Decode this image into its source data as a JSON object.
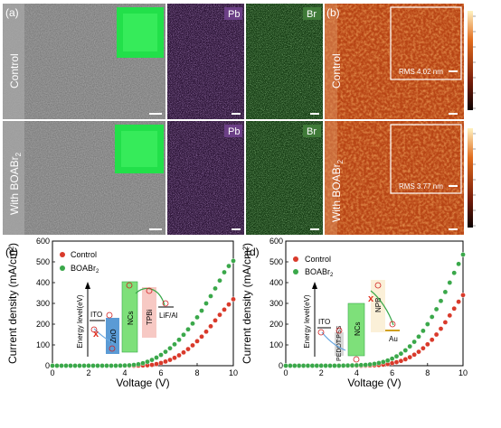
{
  "figure": {
    "panel_a_label": "(a)",
    "panel_b_label": "(b)",
    "panel_c_label": "(c)",
    "panel_d_label": "(d)",
    "row_labels": [
      "Control",
      "With BOABr"
    ],
    "row_label_sub": "2",
    "map_labels": [
      "Pb",
      "Br"
    ],
    "rms_labels": [
      "RMS 4.02 nm",
      "RMS 3.77 nm"
    ],
    "colors": {
      "control": "#d93a2b",
      "boabr": "#3aa84a",
      "pl_green": "#22e04a",
      "pb_map": "#5a2d73",
      "br_map": "#2f7a2c",
      "afm": "#b84515"
    }
  },
  "chart_data": [
    {
      "type": "scatter",
      "panel": "(c)",
      "xlabel": "Voltage (V)",
      "ylabel": "Current density (mA/cm²)",
      "xlim": [
        0,
        10
      ],
      "ylim": [
        0,
        600
      ],
      "xticks": [
        "0",
        "2",
        "4",
        "6",
        "8",
        "10"
      ],
      "yticks": [
        "0",
        "100",
        "200",
        "300",
        "400",
        "500",
        "600"
      ],
      "legend": [
        "Control",
        "BOABr"
      ],
      "legend_sub": "2",
      "legend_position": "top-left",
      "series": [
        {
          "name": "Control",
          "color": "#d93a2b",
          "x": [
            0,
            0.25,
            0.5,
            0.75,
            1,
            1.25,
            1.5,
            1.75,
            2,
            2.25,
            2.5,
            2.75,
            3,
            3.25,
            3.5,
            3.75,
            4,
            4.25,
            4.5,
            4.75,
            5,
            5.25,
            5.5,
            5.75,
            6,
            6.25,
            6.5,
            6.75,
            7,
            7.25,
            7.5,
            7.75,
            8,
            8.25,
            8.5,
            8.75,
            9,
            9.25,
            9.5,
            9.75,
            10
          ],
          "y": [
            0,
            0,
            0,
            0,
            0,
            0,
            0,
            0,
            0,
            0,
            0,
            0,
            0,
            0,
            0,
            0,
            0,
            0,
            0,
            0.5,
            1,
            2,
            4,
            8,
            13,
            20,
            28,
            38,
            50,
            64,
            80,
            98,
            118,
            140,
            164,
            190,
            218,
            245,
            270,
            295,
            320
          ]
        },
        {
          "name": "BOABr",
          "color": "#3aa84a",
          "x": [
            0,
            0.25,
            0.5,
            0.75,
            1,
            1.25,
            1.5,
            1.75,
            2,
            2.25,
            2.5,
            2.75,
            3,
            3.25,
            3.5,
            3.75,
            4,
            4.25,
            4.5,
            4.75,
            5,
            5.25,
            5.5,
            5.75,
            6,
            6.25,
            6.5,
            6.75,
            7,
            7.25,
            7.5,
            7.75,
            8,
            8.25,
            8.5,
            8.75,
            9,
            9.25,
            9.5,
            9.75,
            10
          ],
          "y": [
            0,
            0,
            0,
            0,
            0,
            0,
            0,
            0,
            0,
            0,
            0,
            0,
            0,
            0,
            0,
            0.5,
            1,
            2,
            4,
            7,
            12,
            19,
            28,
            39,
            52,
            67,
            84,
            103,
            125,
            149,
            175,
            203,
            233,
            265,
            300,
            335,
            372,
            410,
            450,
            480,
            505
          ]
        }
      ],
      "inset": {
        "axis_label": "Energy level(eV)",
        "layers": [
          "ITO",
          "ZnO",
          "NCs",
          "TPBi",
          "LiF/Al"
        ]
      }
    },
    {
      "type": "scatter",
      "panel": "(d)",
      "xlabel": "Voltage (V)",
      "ylabel": "Current density (mA/cm²)",
      "xlim": [
        0,
        10
      ],
      "ylim": [
        0,
        600
      ],
      "xticks": [
        "0",
        "2",
        "4",
        "6",
        "8",
        "10"
      ],
      "yticks": [
        "0",
        "100",
        "200",
        "300",
        "400",
        "500",
        "600"
      ],
      "legend": [
        "Control",
        "BOABr"
      ],
      "legend_sub": "2",
      "legend_position": "top-left",
      "series": [
        {
          "name": "Control",
          "color": "#d93a2b",
          "x": [
            0,
            0.25,
            0.5,
            0.75,
            1,
            1.25,
            1.5,
            1.75,
            2,
            2.25,
            2.5,
            2.75,
            3,
            3.25,
            3.5,
            3.75,
            4,
            4.25,
            4.5,
            4.75,
            5,
            5.25,
            5.5,
            5.75,
            6,
            6.25,
            6.5,
            6.75,
            7,
            7.25,
            7.5,
            7.75,
            8,
            8.25,
            8.5,
            8.75,
            9,
            9.25,
            9.5,
            9.75,
            10
          ],
          "y": [
            0,
            0,
            0,
            0,
            0,
            0,
            0,
            0,
            0,
            0,
            0,
            0,
            0,
            0,
            0,
            0,
            0,
            0,
            0.5,
            1,
            2,
            3,
            5,
            8,
            12,
            17,
            23,
            31,
            41,
            53,
            67,
            84,
            103,
            125,
            150,
            178,
            209,
            242,
            275,
            308,
            340
          ]
        },
        {
          "name": "BOABr",
          "color": "#3aa84a",
          "x": [
            0,
            0.25,
            0.5,
            0.75,
            1,
            1.25,
            1.5,
            1.75,
            2,
            2.25,
            2.5,
            2.75,
            3,
            3.25,
            3.5,
            3.75,
            4,
            4.25,
            4.5,
            4.75,
            5,
            5.25,
            5.5,
            5.75,
            6,
            6.25,
            6.5,
            6.75,
            7,
            7.25,
            7.5,
            7.75,
            8,
            8.25,
            8.5,
            8.75,
            9,
            9.25,
            9.5,
            9.75,
            10
          ],
          "y": [
            0,
            0,
            0,
            0,
            0,
            0,
            0,
            0,
            0,
            0,
            0,
            0,
            0,
            0.5,
            1,
            1.5,
            2,
            3,
            4,
            6,
            9,
            13,
            18,
            25,
            34,
            45,
            58,
            74,
            93,
            115,
            140,
            168,
            200,
            235,
            272,
            312,
            355,
            400,
            447,
            490,
            535
          ]
        }
      ],
      "inset": {
        "axis_label": "Energy level(eV)",
        "layers": [
          "ITO",
          "PEDOT:PSS",
          "NCs",
          "NPB",
          "Au"
        ]
      }
    }
  ]
}
